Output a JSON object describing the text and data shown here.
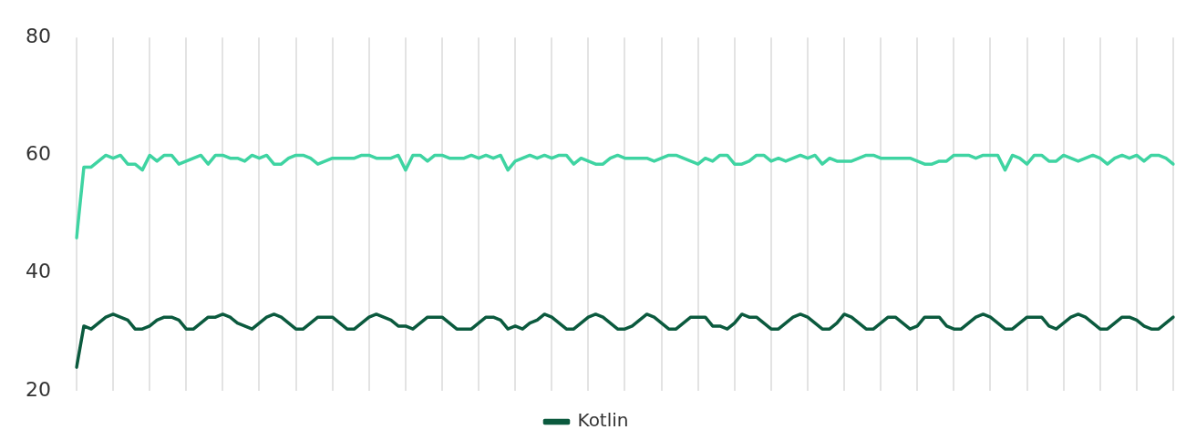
{
  "chart_data": {
    "type": "line",
    "categories": [
      null,
      null,
      null,
      null,
      null,
      null,
      null,
      null,
      null,
      null,
      null,
      null,
      null,
      null,
      null,
      null,
      null,
      null,
      null,
      null,
      null,
      null,
      null,
      null,
      null,
      null,
      null,
      null,
      null,
      null,
      null,
      null,
      null,
      null,
      null,
      null,
      null,
      null,
      null,
      null,
      null,
      null,
      null,
      null,
      null,
      null,
      null,
      null,
      null,
      null,
      null,
      null,
      null,
      null,
      null,
      null,
      null,
      null,
      null,
      null,
      null,
      null,
      null,
      null,
      null,
      null,
      null,
      null,
      null,
      null,
      null,
      null,
      null,
      null,
      null,
      null,
      null,
      null,
      null,
      null,
      null,
      null,
      null,
      null,
      null,
      null,
      null,
      null,
      null,
      null,
      null,
      null,
      null,
      null,
      null,
      null,
      null,
      null,
      null,
      null,
      null,
      null,
      null,
      null,
      null,
      null,
      null,
      null,
      null,
      null,
      null,
      null,
      null,
      null,
      null,
      null,
      null,
      null,
      null,
      null,
      null,
      null,
      null,
      null,
      null,
      null,
      null,
      null,
      null,
      null,
      null,
      null,
      null,
      null,
      null,
      null,
      null,
      null,
      null,
      null,
      null,
      null,
      null,
      null,
      null,
      null,
      null,
      null,
      null,
      null,
      null
    ],
    "series": [
      {
        "color": "#3fd4a2",
        "values": [
          46,
          58,
          58,
          59,
          60,
          59.5,
          60,
          58.5,
          58.5,
          57.5,
          60,
          59,
          60,
          60,
          58.5,
          59,
          59.5,
          60,
          58.5,
          60,
          60,
          59.5,
          59.5,
          59,
          60,
          59.5,
          60,
          58.5,
          58.5,
          59.5,
          60,
          60,
          59.5,
          58.5,
          59,
          59.5,
          59.5,
          59.5,
          59.5,
          60,
          60,
          59.5,
          59.5,
          59.5,
          60,
          57.5,
          60,
          60,
          59,
          60,
          60,
          59.5,
          59.5,
          59.5,
          60,
          59.5,
          60,
          59.5,
          60,
          57.5,
          59,
          59.5,
          60,
          59.5,
          60,
          59.5,
          60,
          60,
          58.5,
          59.5,
          59,
          58.5,
          58.5,
          59.5,
          60,
          59.5,
          59.5,
          59.5,
          59.5,
          59,
          59.5,
          60,
          60,
          59.5,
          59,
          58.5,
          59.5,
          59,
          60,
          60,
          58.5,
          58.5,
          59,
          60,
          60,
          59,
          59.5,
          59,
          59.5,
          60,
          59.5,
          60,
          58.5,
          59.5,
          59,
          59,
          59,
          59.5,
          60,
          60,
          59.5,
          59.5,
          59.5,
          59.5,
          59.5,
          59,
          58.5,
          58.5,
          59,
          59,
          60,
          60,
          60,
          59.5,
          60,
          60,
          60,
          57.5,
          60,
          59.5,
          58.5,
          60,
          60,
          59,
          59,
          60,
          59.5,
          59,
          59.5,
          60,
          59.5,
          58.5,
          59.5,
          60,
          59.5,
          60,
          59,
          60,
          60,
          59.5,
          58.5
        ]
      },
      {
        "name": "Kotlin",
        "color": "#0b5a3e",
        "values": [
          24,
          31,
          30.5,
          31.5,
          32.5,
          33,
          32.5,
          32,
          30.5,
          30.5,
          31,
          32,
          32.5,
          32.5,
          32,
          30.5,
          30.5,
          31.5,
          32.5,
          32.5,
          33,
          32.5,
          31.5,
          31,
          30.5,
          31.5,
          32.5,
          33,
          32.5,
          31.5,
          30.5,
          30.5,
          31.5,
          32.5,
          32.5,
          32.5,
          31.5,
          30.5,
          30.5,
          31.5,
          32.5,
          33,
          32.5,
          32,
          31,
          31,
          30.5,
          31.5,
          32.5,
          32.5,
          32.5,
          31.5,
          30.5,
          30.5,
          30.5,
          31.5,
          32.5,
          32.5,
          32,
          30.5,
          31,
          30.5,
          31.5,
          32,
          33,
          32.5,
          31.5,
          30.5,
          30.5,
          31.5,
          32.5,
          33,
          32.5,
          31.5,
          30.5,
          30.5,
          31,
          32,
          33,
          32.5,
          31.5,
          30.5,
          30.5,
          31.5,
          32.5,
          32.5,
          32.5,
          31,
          31,
          30.5,
          31.5,
          33,
          32.5,
          32.5,
          31.5,
          30.5,
          30.5,
          31.5,
          32.5,
          33,
          32.5,
          31.5,
          30.5,
          30.5,
          31.5,
          33,
          32.5,
          31.5,
          30.5,
          30.5,
          31.5,
          32.5,
          32.5,
          31.5,
          30.5,
          31,
          32.5,
          32.5,
          32.5,
          31,
          30.5,
          30.5,
          31.5,
          32.5,
          33,
          32.5,
          31.5,
          30.5,
          30.5,
          31.5,
          32.5,
          32.5,
          32.5,
          31,
          30.5,
          31.5,
          32.5,
          33,
          32.5,
          31.5,
          30.5,
          30.5,
          31.5,
          32.5,
          32.5,
          32,
          31,
          30.5,
          30.5,
          31.5,
          32.5
        ]
      }
    ],
    "ylim": [
      20,
      80
    ],
    "yticks": [
      20,
      40,
      60,
      80
    ],
    "grid": "x",
    "legend": "bottom",
    "tick_labels": "y",
    "marker": "none",
    "line_style": "solid"
  }
}
